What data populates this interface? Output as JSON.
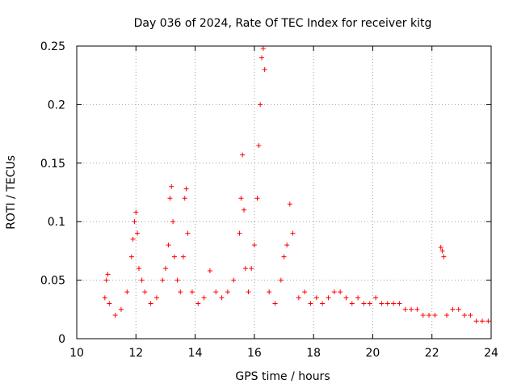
{
  "chart_data": {
    "type": "scatter",
    "title": "Day 036 of 2024, Rate Of TEC Index for receiver kitg",
    "xlabel": "GPS time / hours",
    "ylabel": "ROTI / TECUs",
    "xlim": [
      10,
      24
    ],
    "ylim": [
      0,
      0.25
    ],
    "x_ticks": [
      10,
      12,
      14,
      16,
      18,
      20,
      22,
      24
    ],
    "x_tick_labels": [
      "10",
      "12",
      "14",
      "16",
      "18",
      "20",
      "22",
      "24"
    ],
    "y_ticks": [
      0,
      0.05,
      0.1,
      0.15,
      0.2,
      0.25
    ],
    "y_tick_labels": [
      "0",
      "0.05",
      "0.1",
      "0.15",
      "0.2",
      "0.25"
    ],
    "grid": true,
    "marker": "plus",
    "color": "#ff0000",
    "series": [
      {
        "name": "ROTI",
        "x": [
          10.95,
          11.0,
          11.05,
          11.1,
          11.3,
          11.5,
          11.7,
          11.85,
          11.9,
          11.95,
          12.0,
          12.05,
          12.1,
          12.2,
          12.3,
          12.5,
          12.7,
          12.9,
          13.0,
          13.1,
          13.15,
          13.2,
          13.25,
          13.3,
          13.4,
          13.5,
          13.6,
          13.65,
          13.7,
          13.75,
          13.9,
          14.1,
          14.3,
          14.5,
          14.7,
          14.9,
          15.1,
          15.3,
          15.5,
          15.55,
          15.6,
          15.65,
          15.7,
          15.8,
          15.9,
          16.0,
          16.1,
          16.15,
          16.2,
          16.25,
          16.3,
          16.35,
          16.5,
          16.7,
          16.9,
          17.0,
          17.1,
          17.2,
          17.3,
          17.5,
          17.7,
          17.9,
          18.1,
          18.3,
          18.5,
          18.7,
          18.9,
          19.1,
          19.3,
          19.5,
          19.7,
          19.9,
          20.1,
          20.3,
          20.5,
          20.7,
          20.9,
          21.1,
          21.3,
          21.5,
          21.7,
          21.9,
          22.1,
          22.3,
          22.35,
          22.4,
          22.5,
          22.7,
          22.9,
          23.1,
          23.3,
          23.5,
          23.7,
          23.9
        ],
        "y": [
          0.035,
          0.05,
          0.055,
          0.03,
          0.02,
          0.025,
          0.04,
          0.07,
          0.085,
          0.1,
          0.108,
          0.09,
          0.06,
          0.05,
          0.04,
          0.03,
          0.035,
          0.05,
          0.06,
          0.08,
          0.12,
          0.13,
          0.1,
          0.07,
          0.05,
          0.04,
          0.07,
          0.12,
          0.128,
          0.09,
          0.04,
          0.03,
          0.035,
          0.058,
          0.04,
          0.035,
          0.04,
          0.05,
          0.09,
          0.12,
          0.157,
          0.11,
          0.06,
          0.04,
          0.06,
          0.08,
          0.12,
          0.165,
          0.2,
          0.24,
          0.248,
          0.23,
          0.04,
          0.03,
          0.05,
          0.07,
          0.08,
          0.115,
          0.09,
          0.035,
          0.04,
          0.03,
          0.035,
          0.03,
          0.035,
          0.04,
          0.04,
          0.035,
          0.03,
          0.035,
          0.03,
          0.03,
          0.035,
          0.03,
          0.03,
          0.03,
          0.03,
          0.025,
          0.025,
          0.025,
          0.02,
          0.02,
          0.02,
          0.078,
          0.075,
          0.07,
          0.02,
          0.025,
          0.025,
          0.02,
          0.02,
          0.015,
          0.015,
          0.015
        ]
      }
    ]
  }
}
